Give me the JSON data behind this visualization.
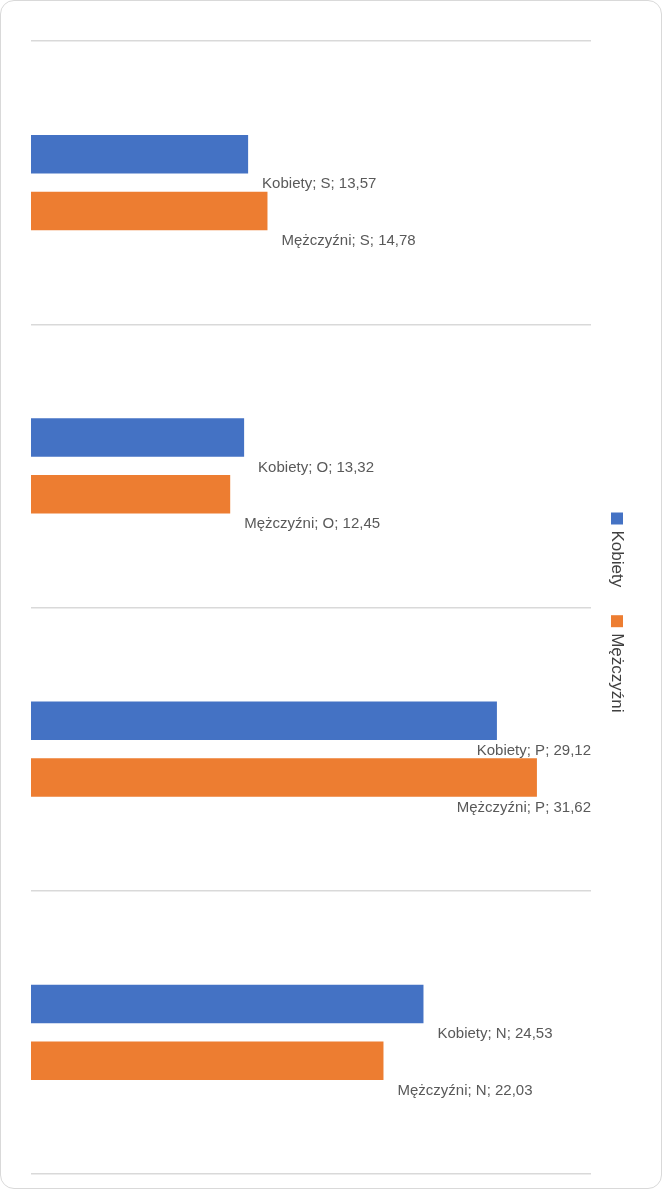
{
  "chart_data": {
    "type": "bar",
    "orientation": "horizontal",
    "categories": [
      null,
      null,
      null,
      null
    ],
    "series": [
      {
        "name": "Kobiety",
        "color": "#4472c4",
        "values": [
          13.57,
          13.32,
          29.12,
          24.53
        ],
        "value_labels": [
          "Kobiety; S; 13,57",
          "Kobiety; O; 13,32",
          "Kobiety; P; 29,12",
          "Kobiety; N; 24,53"
        ]
      },
      {
        "name": "Mężczyźni",
        "color": "#ed7d31",
        "values": [
          14.78,
          12.45,
          31.62,
          22.03
        ],
        "value_labels": [
          "Mężczyźni; S; 14,78",
          "Mężczyźni; O; 12,45",
          "Mężczyźni; P; 31,62",
          "Mężczyźni; N; 22,03"
        ]
      }
    ],
    "xlim": [
      0,
      35
    ],
    "grid": "y",
    "legend": "right",
    "tick_labels": "y"
  }
}
